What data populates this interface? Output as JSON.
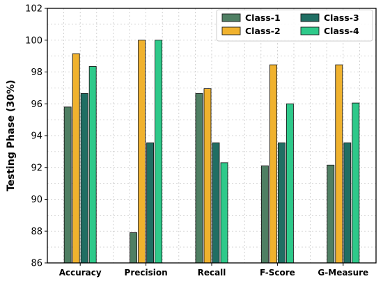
{
  "chart_data": {
    "type": "bar",
    "title": "",
    "xlabel": "",
    "ylabel": "Testing Phase (30%)",
    "ylim": [
      86,
      102
    ],
    "yticks": [
      86,
      88,
      90,
      92,
      94,
      96,
      98,
      100,
      102
    ],
    "grid": true,
    "legend_position": "top-right",
    "categories": [
      "Accuracy",
      "Precision",
      "Recall",
      "F-Score",
      "G-Measure"
    ],
    "series": [
      {
        "name": "Class-1",
        "color": "#4f7f63",
        "values": [
          95.8,
          87.9,
          96.65,
          92.1,
          92.15
        ]
      },
      {
        "name": "Class-2",
        "color": "#f0b22e",
        "values": [
          99.15,
          100.0,
          96.95,
          98.45,
          98.45
        ]
      },
      {
        "name": "Class-3",
        "color": "#206e63",
        "values": [
          96.65,
          93.55,
          93.55,
          93.55,
          93.55
        ]
      },
      {
        "name": "Class-4",
        "color": "#2ec98a",
        "values": [
          98.35,
          100.0,
          92.3,
          96.0,
          96.05
        ]
      }
    ]
  }
}
